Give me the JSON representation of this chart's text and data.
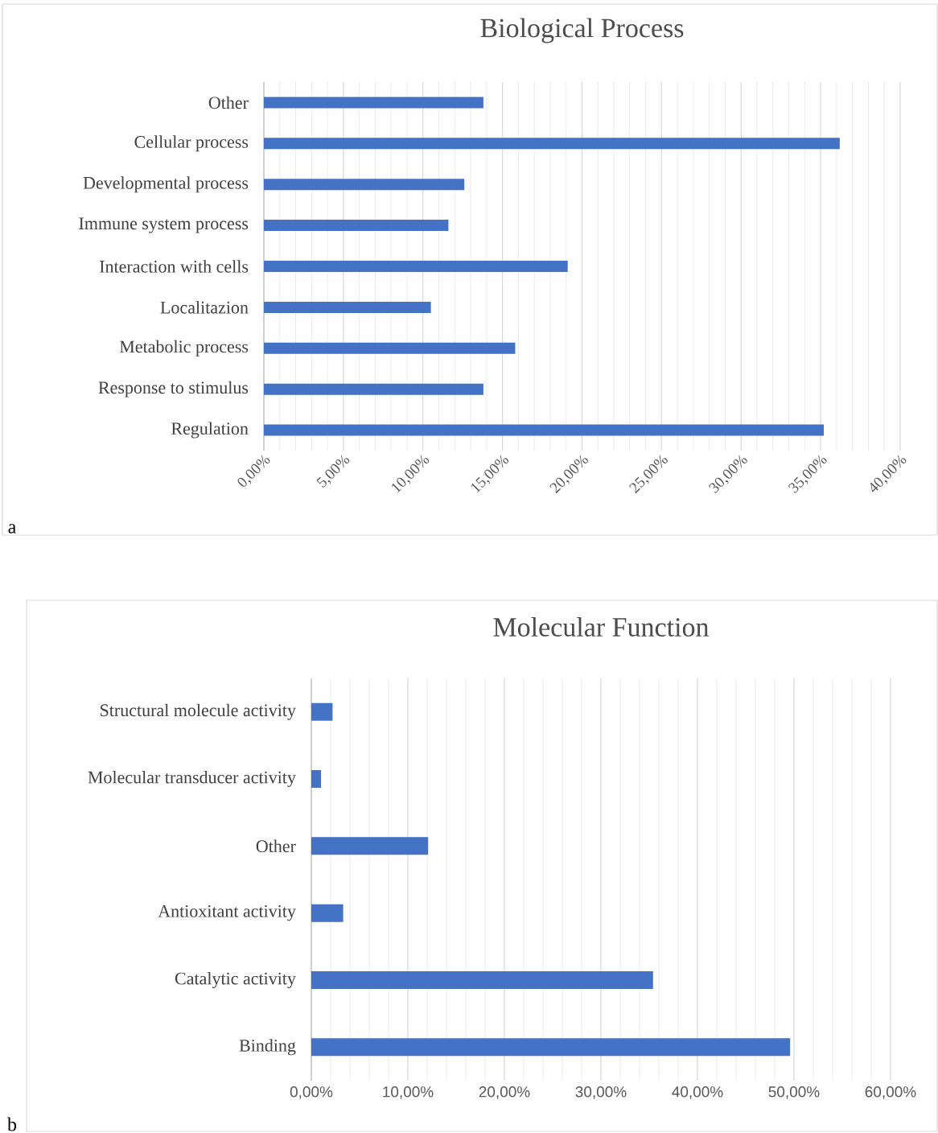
{
  "chart_data": [
    {
      "type": "bar",
      "orientation": "horizontal",
      "title": "Biological Process",
      "categories": [
        "Other",
        "Cellular process",
        "Developmental process",
        "Immune system process",
        "Interaction with cells",
        "Localitazion",
        "Metabolic process",
        "Response  to stimulus",
        "Regulation"
      ],
      "values": [
        13.8,
        36.2,
        12.6,
        11.6,
        19.1,
        10.5,
        15.8,
        13.8,
        35.2
      ],
      "color": "#4472c4",
      "xlim": [
        0,
        40
      ],
      "xticks": [
        {
          "value": 0,
          "label": "0,00%"
        },
        {
          "value": 5,
          "label": "5,00%"
        },
        {
          "value": 10,
          "label": "10,00%"
        },
        {
          "value": 15,
          "label": "15,00%"
        },
        {
          "value": 20,
          "label": "20,00%"
        },
        {
          "value": 25,
          "label": "25,00%"
        },
        {
          "value": 30,
          "label": "30,00%"
        },
        {
          "value": 35,
          "label": "35,00%"
        },
        {
          "value": 40,
          "label": "40,00%"
        }
      ],
      "grid": "x",
      "annotations": [
        "a"
      ]
    },
    {
      "type": "bar",
      "orientation": "horizontal",
      "title": "Molecular Function",
      "categories": [
        "Structural molecule activity",
        "Molecular transducer activity",
        "Other",
        "Antioxitant activity",
        "Catalytic activity",
        "Binding"
      ],
      "values": [
        2.2,
        1.0,
        12.1,
        3.3,
        35.4,
        49.6
      ],
      "color": "#4472c4",
      "xlim": [
        0,
        60
      ],
      "xticks": [
        {
          "value": 0,
          "label": "0,00%"
        },
        {
          "value": 10,
          "label": "10,00%"
        },
        {
          "value": 20,
          "label": "20,00%"
        },
        {
          "value": 30,
          "label": "30,00%"
        },
        {
          "value": 40,
          "label": "40,00%"
        },
        {
          "value": 50,
          "label": "50,00%"
        },
        {
          "value": 60,
          "label": "60,00%"
        }
      ],
      "grid": "x",
      "annotations": [
        "b"
      ]
    }
  ]
}
